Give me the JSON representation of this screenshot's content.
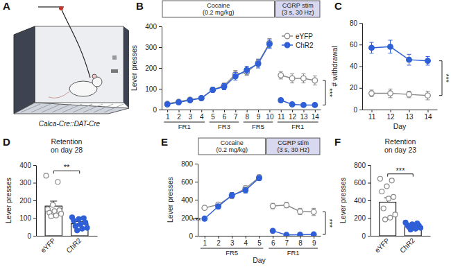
{
  "chart_data": [
    {
      "type": "illustration",
      "panel": "A",
      "title": "Calca-Cre::DAT-Cre"
    },
    {
      "type": "line",
      "panel": "B",
      "x": [
        1,
        2,
        3,
        4,
        5,
        6,
        7,
        8,
        9,
        10,
        11,
        12,
        13,
        14
      ],
      "xlim": [
        0.5,
        14.5
      ],
      "xticks": [
        1,
        2,
        3,
        4,
        5,
        6,
        7,
        8,
        9,
        10,
        11,
        12,
        13,
        14
      ],
      "ylim": [
        0,
        400
      ],
      "yticks": [
        0,
        100,
        200,
        300,
        400
      ],
      "y_label": "Lever presses",
      "series": [
        {
          "name": "eYFP",
          "color": "#8a8a8a",
          "marker": "open-circle",
          "values": [
            28,
            38,
            48,
            55,
            95,
            115,
            170,
            180,
            225,
            320,
            165,
            150,
            150,
            140
          ],
          "errors": [
            4,
            5,
            6,
            6,
            10,
            12,
            18,
            15,
            18,
            22,
            18,
            22,
            22,
            22
          ]
        },
        {
          "name": "ChR2",
          "color": "#2f5fd7",
          "marker": "circle",
          "values": [
            25,
            35,
            45,
            55,
            95,
            110,
            160,
            190,
            220,
            315,
            45,
            25,
            22,
            22
          ],
          "errors": [
            4,
            5,
            6,
            6,
            12,
            15,
            18,
            18,
            20,
            20,
            10,
            5,
            4,
            4
          ]
        }
      ],
      "sessions": [
        {
          "label": "Cocaine (0.2 mg/kg)",
          "from": 1,
          "to": 10,
          "color": "#ffffff"
        },
        {
          "label": "CGRP stim (3 s, 30 Hz)",
          "from": 11,
          "to": 14,
          "color": "#d8d8f0"
        }
      ],
      "schedules": [
        {
          "label": "FR1",
          "from": 1,
          "to": 4
        },
        {
          "label": "FR3",
          "from": 5,
          "to": 7
        },
        {
          "label": "FR5",
          "from": 8,
          "to": 10
        },
        {
          "label": "FR1",
          "from": 11,
          "to": 14
        }
      ],
      "annotations": [
        {
          "text": "***",
          "x": 14
        }
      ],
      "legend": "top-right"
    },
    {
      "type": "line",
      "panel": "C",
      "x": [
        11,
        12,
        13,
        14
      ],
      "xlim": [
        10.5,
        14.5
      ],
      "xticks": [
        11,
        12,
        13,
        14
      ],
      "x_label": "Day",
      "ylim": [
        0,
        80
      ],
      "yticks": [
        0,
        20,
        40,
        60,
        80
      ],
      "y_label": "# withdrawal",
      "series": [
        {
          "name": "eYFP",
          "color": "#8a8a8a",
          "marker": "open-circle",
          "values": [
            15,
            15,
            14,
            13
          ],
          "errors": [
            3,
            4,
            3,
            4
          ]
        },
        {
          "name": "ChR2",
          "color": "#2f5fd7",
          "marker": "circle",
          "values": [
            57,
            58,
            46,
            45
          ],
          "errors": [
            5,
            6,
            5,
            4
          ]
        }
      ],
      "annotations": [
        {
          "text": "***",
          "x": 14
        }
      ]
    },
    {
      "type": "bar",
      "panel": "D",
      "title": "Retention on day 28",
      "categories": [
        "eYFP",
        "ChR2"
      ],
      "values": [
        168,
        68
      ],
      "errors": [
        28,
        12
      ],
      "points": [
        [
          340,
          305,
          175,
          150,
          145,
          140,
          130,
          125,
          115,
          110
        ],
        [
          105,
          100,
          95,
          85,
          75,
          65,
          55,
          45,
          40,
          30
        ]
      ],
      "colors": [
        "#8a8a8a",
        "#2f5fd7"
      ],
      "markers": [
        "open-circle",
        "circle"
      ],
      "ylim": [
        0,
        400
      ],
      "yticks": [
        0,
        100,
        200,
        300,
        400
      ],
      "y_label": "Lever presses",
      "annotations": [
        {
          "text": "**"
        }
      ]
    },
    {
      "type": "line",
      "panel": "E",
      "x": [
        1,
        2,
        3,
        4,
        5,
        6,
        7,
        8,
        9
      ],
      "xlim": [
        0.5,
        9.5
      ],
      "xticks": [
        1,
        2,
        3,
        4,
        5,
        6,
        7,
        8,
        9
      ],
      "x_label": "Day",
      "ylim": [
        0,
        800
      ],
      "yticks": [
        0,
        200,
        400,
        600,
        800
      ],
      "y_label": "Lever presses",
      "series": [
        {
          "name": "eYFP",
          "color": "#8a8a8a",
          "marker": "open-circle",
          "values": [
            310,
            345,
            440,
            525,
            650,
            330,
            340,
            270,
            265
          ],
          "errors": [
            20,
            25,
            25,
            30,
            25,
            30,
            30,
            35,
            40
          ]
        },
        {
          "name": "ChR2",
          "color": "#2f5fd7",
          "marker": "circle",
          "values": [
            190,
            325,
            450,
            505,
            640,
            55,
            10,
            12,
            15
          ],
          "errors": [
            20,
            25,
            30,
            30,
            25,
            15,
            5,
            5,
            5
          ]
        }
      ],
      "sessions": [
        {
          "label": "Cocaine (0.2 mg/kg)",
          "from": 1,
          "to": 5,
          "color": "#ffffff"
        },
        {
          "label": "CGRP stim (3 s, 30 Hz)",
          "from": 6,
          "to": 9,
          "color": "#d8d8f0"
        }
      ],
      "schedules": [
        {
          "label": "FR5",
          "from": 1,
          "to": 5
        },
        {
          "label": "FR1",
          "from": 6,
          "to": 9
        }
      ],
      "annotations": [
        {
          "text": "***",
          "x": 1
        },
        {
          "text": "***",
          "x": 9
        }
      ]
    },
    {
      "type": "bar",
      "panel": "F",
      "title": "Retention on day 23",
      "categories": [
        "eYFP",
        "ChR2"
      ],
      "values": [
        380,
        108
      ],
      "errors": [
        50,
        10
      ],
      "points": [
        [
          645,
          625,
          560,
          500,
          440,
          420,
          310,
          240,
          205,
          185
        ],
        [
          150,
          140,
          130,
          120,
          115,
          105,
          100,
          90,
          80,
          70
        ]
      ],
      "colors": [
        "#8a8a8a",
        "#2f5fd7"
      ],
      "markers": [
        "open-circle",
        "circle"
      ],
      "ylim": [
        0,
        800
      ],
      "yticks": [
        0,
        200,
        400,
        600,
        800
      ],
      "y_label": "Lever presses",
      "annotations": [
        {
          "text": "***"
        }
      ]
    }
  ]
}
